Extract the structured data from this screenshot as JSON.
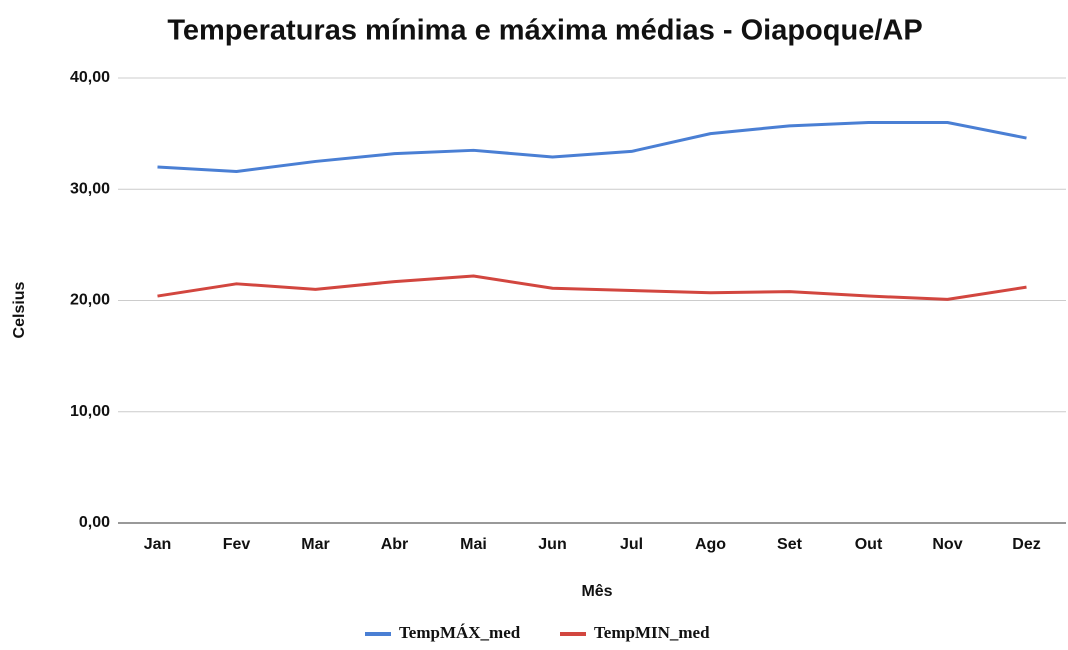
{
  "chart_data": {
    "type": "line",
    "title": "Temperaturas mínima e máxima médias - Oiapoque/AP",
    "x_label": "Mês",
    "y_label": "Celsius",
    "categories": [
      "Jan",
      "Fev",
      "Mar",
      "Abr",
      "Mai",
      "Jun",
      "Jul",
      "Ago",
      "Set",
      "Out",
      "Nov",
      "Dez"
    ],
    "series": [
      {
        "name": "TempMÁX_med",
        "color": "#4a7fd4",
        "values": [
          32.0,
          31.6,
          32.5,
          33.2,
          33.5,
          32.9,
          33.4,
          35.0,
          35.7,
          36.0,
          36.0,
          34.6
        ]
      },
      {
        "name": "TempMIN_med",
        "color": "#d2463f",
        "values": [
          20.4,
          21.5,
          21.0,
          21.7,
          22.2,
          21.1,
          20.9,
          20.7,
          20.8,
          20.4,
          20.1,
          21.2
        ]
      }
    ],
    "ylim": [
      0,
      40
    ],
    "yticks": [
      {
        "value": 0,
        "label": "0,00"
      },
      {
        "value": 10,
        "label": "10,00"
      },
      {
        "value": 20,
        "label": "20,00"
      },
      {
        "value": 30,
        "label": "30,00"
      },
      {
        "value": 40,
        "label": "40,00"
      }
    ],
    "grid": true,
    "legend": "bottom"
  }
}
